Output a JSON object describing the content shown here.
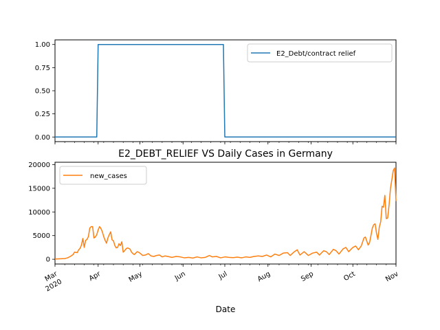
{
  "chart_data": [
    {
      "type": "line",
      "title": "",
      "xlabel": "",
      "ylabel": "",
      "xlim": [
        "2020-03-01",
        "2020-11-01"
      ],
      "ylim": [
        -0.05,
        1.05
      ],
      "yticks": [
        0.0,
        0.25,
        0.5,
        0.75,
        1.0
      ],
      "ytick_labels": [
        "0.00",
        "0.25",
        "0.50",
        "0.75",
        "1.00"
      ],
      "grid": false,
      "legend": "upper right",
      "series": [
        {
          "name": "E2_Debt/contract relief",
          "color": "#1f77b4",
          "points": [
            [
              "2020-03-01",
              0
            ],
            [
              "2020-03-31",
              0
            ],
            [
              "2020-04-01",
              1
            ],
            [
              "2020-06-30",
              1
            ],
            [
              "2020-07-01",
              0
            ],
            [
              "2020-11-01",
              0
            ]
          ]
        }
      ]
    },
    {
      "type": "line",
      "title": "E2_DEBT_RELIEF VS Daily Cases in Germany",
      "xlabel": "Date",
      "ylabel": "",
      "xlim": [
        "2020-03-01",
        "2020-11-01"
      ],
      "ylim": [
        -1000,
        20500
      ],
      "yticks": [
        0,
        5000,
        10000,
        15000,
        20000
      ],
      "ytick_labels": [
        "0",
        "5000",
        "10000",
        "15000",
        "20000"
      ],
      "xticks": [
        "2020-03-01",
        "2020-04-01",
        "2020-05-01",
        "2020-06-01",
        "2020-07-01",
        "2020-08-01",
        "2020-09-01",
        "2020-10-01",
        "2020-11-01"
      ],
      "xtick_labels": [
        "Mar\n2020",
        "Apr",
        "May",
        "Jun",
        "Jul",
        "Aug",
        "Sep",
        "Oct",
        "Nov"
      ],
      "grid": false,
      "legend": "upper left",
      "series": [
        {
          "name": "new_cases",
          "color": "#ff7f0e",
          "points": [
            [
              "2020-03-01",
              50
            ],
            [
              "2020-03-05",
              100
            ],
            [
              "2020-03-08",
              150
            ],
            [
              "2020-03-10",
              300
            ],
            [
              "2020-03-12",
              600
            ],
            [
              "2020-03-14",
              1000
            ],
            [
              "2020-03-15",
              1500
            ],
            [
              "2020-03-17",
              1400
            ],
            [
              "2020-03-18",
              2000
            ],
            [
              "2020-03-19",
              2300
            ],
            [
              "2020-03-20",
              3000
            ],
            [
              "2020-03-21",
              4400
            ],
            [
              "2020-03-22",
              2500
            ],
            [
              "2020-03-23",
              4000
            ],
            [
              "2020-03-24",
              4200
            ],
            [
              "2020-03-25",
              4800
            ],
            [
              "2020-03-26",
              6600
            ],
            [
              "2020-03-27",
              6900
            ],
            [
              "2020-03-28",
              6900
            ],
            [
              "2020-03-29",
              4500
            ],
            [
              "2020-03-30",
              4700
            ],
            [
              "2020-03-31",
              5200
            ],
            [
              "2020-04-01",
              6200
            ],
            [
              "2020-04-02",
              6900
            ],
            [
              "2020-04-03",
              6500
            ],
            [
              "2020-04-04",
              5800
            ],
            [
              "2020-04-05",
              4800
            ],
            [
              "2020-04-06",
              4000
            ],
            [
              "2020-04-07",
              3400
            ],
            [
              "2020-04-08",
              4500
            ],
            [
              "2020-04-09",
              5200
            ],
            [
              "2020-04-10",
              5800
            ],
            [
              "2020-04-11",
              4100
            ],
            [
              "2020-04-12",
              3900
            ],
            [
              "2020-04-13",
              2900
            ],
            [
              "2020-04-14",
              2400
            ],
            [
              "2020-04-15",
              2500
            ],
            [
              "2020-04-16",
              3300
            ],
            [
              "2020-04-17",
              2900
            ],
            [
              "2020-04-18",
              3700
            ],
            [
              "2020-04-19",
              1500
            ],
            [
              "2020-04-20",
              1800
            ],
            [
              "2020-04-21",
              2200
            ],
            [
              "2020-04-22",
              2400
            ],
            [
              "2020-04-23",
              2300
            ],
            [
              "2020-04-24",
              2100
            ],
            [
              "2020-04-25",
              1500
            ],
            [
              "2020-04-26",
              1200
            ],
            [
              "2020-04-27",
              1000
            ],
            [
              "2020-04-28",
              1300
            ],
            [
              "2020-04-29",
              1600
            ],
            [
              "2020-04-30",
              1500
            ],
            [
              "2020-05-01",
              1300
            ],
            [
              "2020-05-03",
              800
            ],
            [
              "2020-05-05",
              900
            ],
            [
              "2020-05-07",
              1200
            ],
            [
              "2020-05-09",
              700
            ],
            [
              "2020-05-11",
              600
            ],
            [
              "2020-05-13",
              800
            ],
            [
              "2020-05-15",
              900
            ],
            [
              "2020-05-17",
              500
            ],
            [
              "2020-05-19",
              700
            ],
            [
              "2020-05-21",
              600
            ],
            [
              "2020-05-24",
              400
            ],
            [
              "2020-05-27",
              600
            ],
            [
              "2020-05-30",
              500
            ],
            [
              "2020-06-02",
              300
            ],
            [
              "2020-06-05",
              400
            ],
            [
              "2020-06-08",
              250
            ],
            [
              "2020-06-11",
              500
            ],
            [
              "2020-06-14",
              300
            ],
            [
              "2020-06-17",
              400
            ],
            [
              "2020-06-20",
              800
            ],
            [
              "2020-06-22",
              500
            ],
            [
              "2020-06-25",
              600
            ],
            [
              "2020-06-28",
              300
            ],
            [
              "2020-07-01",
              500
            ],
            [
              "2020-07-04",
              400
            ],
            [
              "2020-07-07",
              350
            ],
            [
              "2020-07-10",
              450
            ],
            [
              "2020-07-13",
              300
            ],
            [
              "2020-07-16",
              500
            ],
            [
              "2020-07-19",
              400
            ],
            [
              "2020-07-22",
              600
            ],
            [
              "2020-07-25",
              700
            ],
            [
              "2020-07-28",
              600
            ],
            [
              "2020-07-31",
              900
            ],
            [
              "2020-08-03",
              500
            ],
            [
              "2020-08-06",
              1100
            ],
            [
              "2020-08-09",
              800
            ],
            [
              "2020-08-12",
              1300
            ],
            [
              "2020-08-15",
              1400
            ],
            [
              "2020-08-17",
              800
            ],
            [
              "2020-08-20",
              1600
            ],
            [
              "2020-08-22",
              2000
            ],
            [
              "2020-08-24",
              900
            ],
            [
              "2020-08-27",
              1600
            ],
            [
              "2020-08-30",
              800
            ],
            [
              "2020-09-02",
              1300
            ],
            [
              "2020-09-05",
              1500
            ],
            [
              "2020-09-07",
              900
            ],
            [
              "2020-09-10",
              1800
            ],
            [
              "2020-09-12",
              1600
            ],
            [
              "2020-09-14",
              1000
            ],
            [
              "2020-09-17",
              2100
            ],
            [
              "2020-09-19",
              1800
            ],
            [
              "2020-09-21",
              1100
            ],
            [
              "2020-09-24",
              2200
            ],
            [
              "2020-09-26",
              2500
            ],
            [
              "2020-09-28",
              1600
            ],
            [
              "2020-10-01",
              2500
            ],
            [
              "2020-10-03",
              2800
            ],
            [
              "2020-10-05",
              2000
            ],
            [
              "2020-10-07",
              2800
            ],
            [
              "2020-10-09",
              4500
            ],
            [
              "2020-10-10",
              4700
            ],
            [
              "2020-10-12",
              3000
            ],
            [
              "2020-10-13",
              3500
            ],
            [
              "2020-10-14",
              5000
            ],
            [
              "2020-10-15",
              6600
            ],
            [
              "2020-10-16",
              7300
            ],
            [
              "2020-10-17",
              7500
            ],
            [
              "2020-10-18",
              5500
            ],
            [
              "2020-10-19",
              4200
            ],
            [
              "2020-10-20",
              6800
            ],
            [
              "2020-10-21",
              7900
            ],
            [
              "2020-10-22",
              11200
            ],
            [
              "2020-10-23",
              11000
            ],
            [
              "2020-10-24",
              13500
            ],
            [
              "2020-10-25",
              8600
            ],
            [
              "2020-10-26",
              8700
            ],
            [
              "2020-10-27",
              11400
            ],
            [
              "2020-10-28",
              14900
            ],
            [
              "2020-10-29",
              16800
            ],
            [
              "2020-10-30",
              18700
            ],
            [
              "2020-10-31",
              19300
            ],
            [
              "2020-11-01",
              12300
            ]
          ]
        }
      ]
    }
  ]
}
